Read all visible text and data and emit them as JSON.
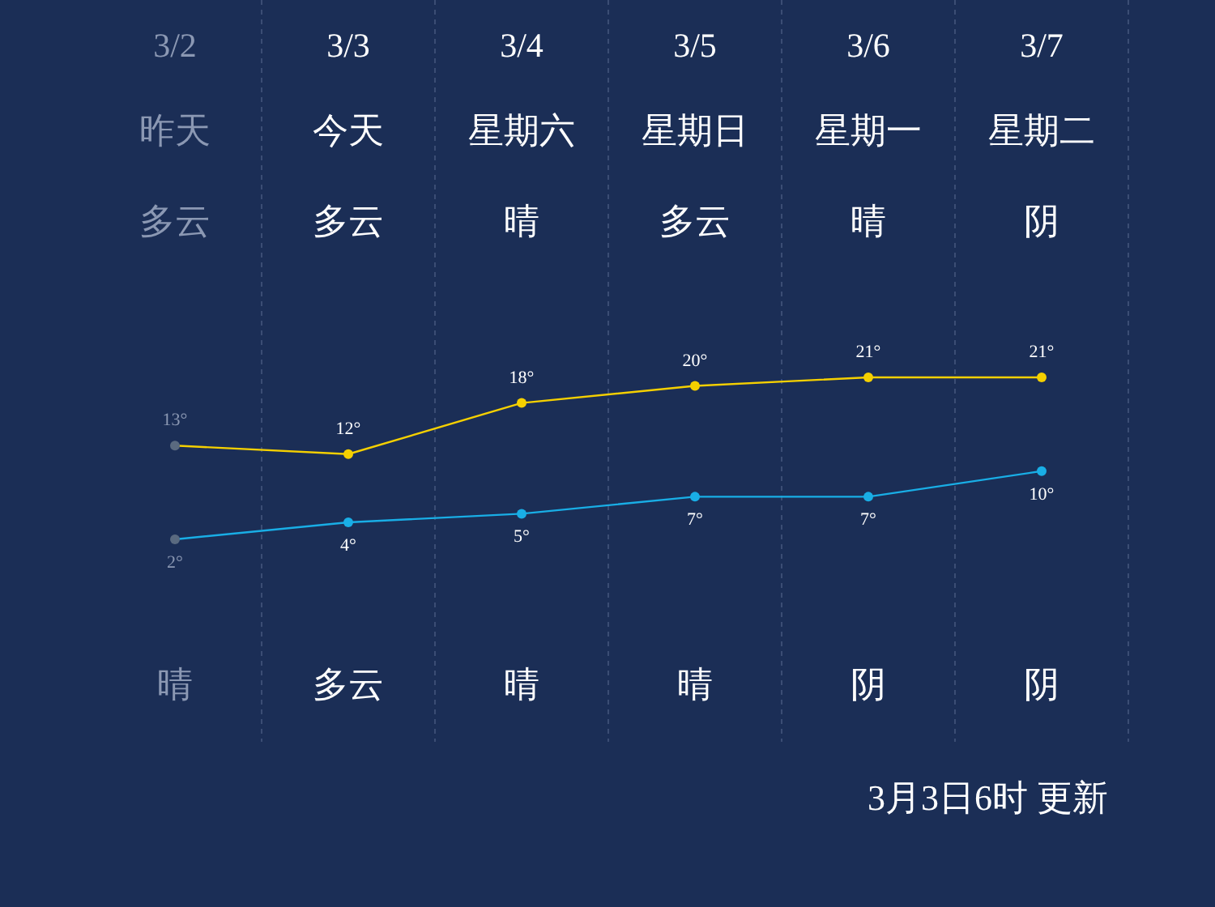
{
  "chart_data": {
    "type": "line",
    "categories": [
      "3/2",
      "3/3",
      "3/4",
      "3/5",
      "3/6",
      "3/7"
    ],
    "series": [
      {
        "color": "#f5d000",
        "values": [
          13,
          12,
          18,
          20,
          21,
          21
        ],
        "value_labels": [
          "13°",
          "12°",
          "18°",
          "20°",
          "21°",
          "21°"
        ]
      },
      {
        "color": "#19aee6",
        "values": [
          2,
          4,
          5,
          7,
          7,
          10
        ],
        "value_labels": [
          "2°",
          "4°",
          "5°",
          "7°",
          "7°",
          "10°"
        ]
      }
    ],
    "marker": "circle",
    "annotations": [
      "昨天",
      "今天",
      "星期六",
      "星期日",
      "星期一",
      "星期二",
      "多云",
      "多云",
      "晴",
      "多云",
      "晴",
      "阴",
      "晴",
      "多云",
      "晴",
      "晴",
      "阴",
      "阴",
      "3月3日6时 更新"
    ]
  }
}
